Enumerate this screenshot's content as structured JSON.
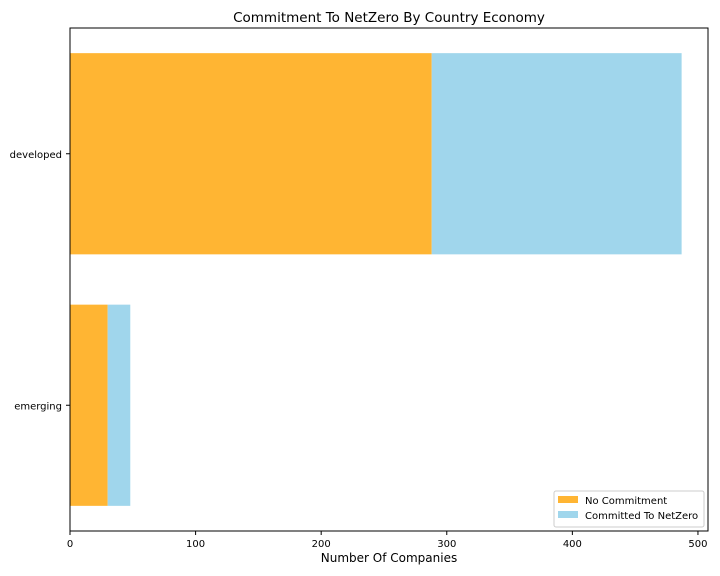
{
  "chart_data": {
    "type": "bar",
    "orientation": "horizontal",
    "stacked": true,
    "title": "Commitment To NetZero By Country Economy",
    "xlabel": "Number Of Companies",
    "ylabel": "",
    "categories": [
      "developed",
      "emerging"
    ],
    "series": [
      {
        "name": "No Commitment",
        "values": [
          288,
          30
        ],
        "color": "#ffb533"
      },
      {
        "name": "Committed To NetZero",
        "values": [
          199,
          18
        ],
        "color": "#a0d6ec"
      }
    ],
    "xlim": [
      0,
      508
    ],
    "xticks": [
      0,
      100,
      200,
      300,
      400,
      500
    ],
    "grid": false,
    "legend_position": "lower-right"
  }
}
